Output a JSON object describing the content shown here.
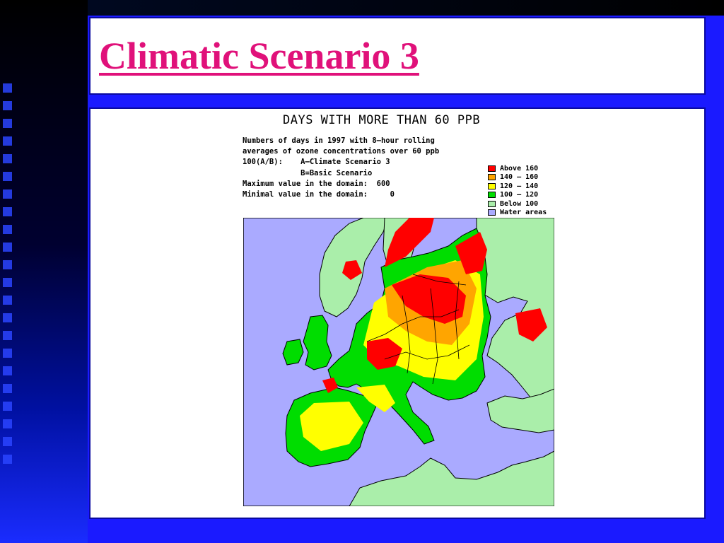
{
  "slide": {
    "title": "Climatic Scenario 3"
  },
  "figure": {
    "title": "DAYS WITH MORE THAN 60 PPB",
    "description": [
      "Numbers of days in 1997 with 8—hour rolling",
      "averages of ozone concentrations over 60 ppb",
      "100(A/B):    A—Climate Scenario 3",
      "             B=Basic Scenario",
      "Maximum value in the domain:  600",
      "Minimal value in the domain:     0"
    ],
    "legend": [
      {
        "label": "Above 160",
        "color": "#ff0000"
      },
      {
        "label": "140 — 160",
        "color": "#ffa500"
      },
      {
        "label": "120 — 140",
        "color": "#ffff00"
      },
      {
        "label": "100 — 120",
        "color": "#00dd00"
      },
      {
        "label": "Below 100",
        "color": "#aaeeaa"
      },
      {
        "label": "Water areas",
        "color": "#aaaaff"
      }
    ]
  },
  "colors": {
    "slide_background": "#1a1aff",
    "title_color": "#e0117a",
    "panel_border": "#0a0aa0"
  }
}
